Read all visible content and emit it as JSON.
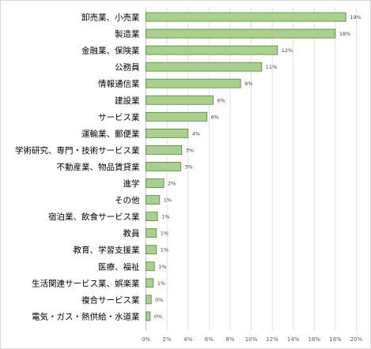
{
  "chart_data": {
    "type": "bar",
    "orientation": "horizontal",
    "categories": [
      "卸売業、小売業",
      "製造業",
      "金融業、保険業",
      "公務員",
      "情報通信業",
      "建設業",
      "サービス業",
      "運輸業、郵便業",
      "学術研究、専門・技術サービス業",
      "不動産業、物品賃貸業",
      "進学",
      "その他",
      "宿泊業、飲食サービス業",
      "教員",
      "教育、学習支援業",
      "医療、福祉",
      "生活関連サービス業、娯楽業",
      "複合サービス業",
      "電気・ガス・熱供給・水道業"
    ],
    "values": [
      19.0,
      18.0,
      12.5,
      11.0,
      9.0,
      6.4,
      5.8,
      4.0,
      3.4,
      3.3,
      1.7,
      1.3,
      1.1,
      1.0,
      1.0,
      0.8,
      0.7,
      0.5,
      0.4
    ],
    "value_labels": [
      "19%",
      "18%",
      "12%",
      "11%",
      "9%",
      "6%",
      "6%",
      "4%",
      "3%",
      "3%",
      "2%",
      "1%",
      "1%",
      "1%",
      "1%",
      "1%",
      "1%",
      "0%",
      "0%"
    ],
    "x_ticks": [
      "0%",
      "2%",
      "4%",
      "6%",
      "8%",
      "10%",
      "12%",
      "14%",
      "16%",
      "18%",
      "20%"
    ],
    "xlim": [
      0,
      20
    ],
    "grid": true,
    "bar_fill": "#a9d18e",
    "bar_stroke": "#548235"
  }
}
